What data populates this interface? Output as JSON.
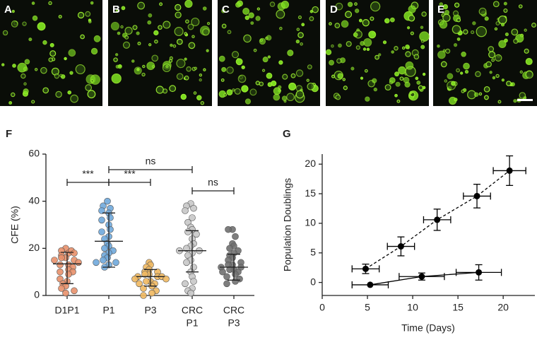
{
  "panels": [
    "A",
    "B",
    "C",
    "D",
    "E"
  ],
  "chart_data": [
    {
      "type": "strip",
      "panel": "F",
      "ylabel": "CFE (%)",
      "categories": [
        [
          "D1P1"
        ],
        [
          "P1"
        ],
        [
          "P3"
        ],
        [
          "CRC",
          "P1"
        ],
        [
          "CRC",
          "P3"
        ]
      ],
      "ylim": [
        0,
        60
      ],
      "yticks": [
        0,
        20,
        40,
        60
      ],
      "groups": [
        {
          "color": "#e8906a",
          "center": 13.4,
          "lower": 5,
          "upper": 18.3,
          "values": [
            20,
            19,
            18,
            19,
            17,
            18,
            16,
            16,
            15,
            15,
            14,
            13,
            13,
            12,
            11,
            10,
            10,
            9,
            7,
            6,
            5,
            4,
            3,
            2,
            1
          ]
        },
        {
          "color": "#6fa8dc",
          "center": 23,
          "lower": 12,
          "upper": 35,
          "values": [
            40,
            38,
            37,
            36,
            35,
            33,
            32,
            30,
            28,
            27,
            25,
            24,
            22,
            21,
            20,
            19,
            18,
            17,
            16,
            15,
            14,
            14,
            13,
            12
          ]
        },
        {
          "color": "#f0b860",
          "center": 8,
          "lower": 4,
          "upper": 11,
          "values": [
            14,
            13,
            12,
            11,
            10,
            10,
            9,
            9,
            8,
            8,
            8,
            7,
            7,
            6,
            6,
            5,
            5,
            4,
            3,
            2,
            1,
            0
          ]
        },
        {
          "color": "#c8c8c8",
          "center": 19,
          "lower": 10,
          "upper": 27.5,
          "values": [
            39,
            38,
            37,
            36,
            33,
            31,
            29,
            28,
            27,
            26,
            24,
            22,
            21,
            20,
            19,
            19,
            18,
            17,
            15,
            14,
            12,
            10,
            8,
            6,
            5,
            3,
            2,
            1
          ]
        },
        {
          "color": "#707070",
          "center": 12,
          "lower": 6.5,
          "upper": 17.5,
          "values": [
            28,
            28,
            25,
            22,
            21,
            20,
            19,
            18,
            17,
            16,
            15,
            14,
            13,
            13,
            12,
            12,
            11,
            11,
            10,
            10,
            9,
            8,
            7,
            6,
            5
          ]
        }
      ],
      "comparisons": [
        {
          "pair": [
            0,
            1
          ],
          "label": "***"
        },
        {
          "pair": [
            1,
            3
          ],
          "label": "ns"
        },
        {
          "pair": [
            1,
            2
          ],
          "label": "***"
        },
        {
          "pair": [
            3,
            4
          ],
          "label": "ns"
        }
      ]
    },
    {
      "type": "errorline",
      "panel": "G",
      "xlabel": "Time (Days)",
      "ylabel": "Population Doublings",
      "xlim": [
        0,
        23.5
      ],
      "xticks": [
        0,
        5,
        10,
        15,
        20
      ],
      "ylim": [
        -2.2,
        21.7
      ],
      "yticks": [
        0,
        5,
        10,
        15,
        20
      ],
      "series": [
        {
          "color": "#000000",
          "dashed": true,
          "x": [
            4.8,
            8.7,
            12.7,
            17.1,
            20.7
          ],
          "xerr": [
            1.5,
            1.5,
            1.5,
            1.5,
            1.8
          ],
          "values": [
            2.3,
            6.1,
            10.6,
            14.6,
            18.9
          ],
          "yerr": [
            0.8,
            1.6,
            1.8,
            2.0,
            2.5
          ]
        },
        {
          "color": "#000000",
          "dashed": false,
          "x": [
            5.3,
            11.0,
            17.3
          ],
          "xerr": [
            2.0,
            2.5,
            2.5
          ],
          "values": [
            -0.4,
            1.0,
            1.7
          ],
          "yerr": [
            0,
            0.6,
            1.3
          ]
        }
      ]
    }
  ]
}
